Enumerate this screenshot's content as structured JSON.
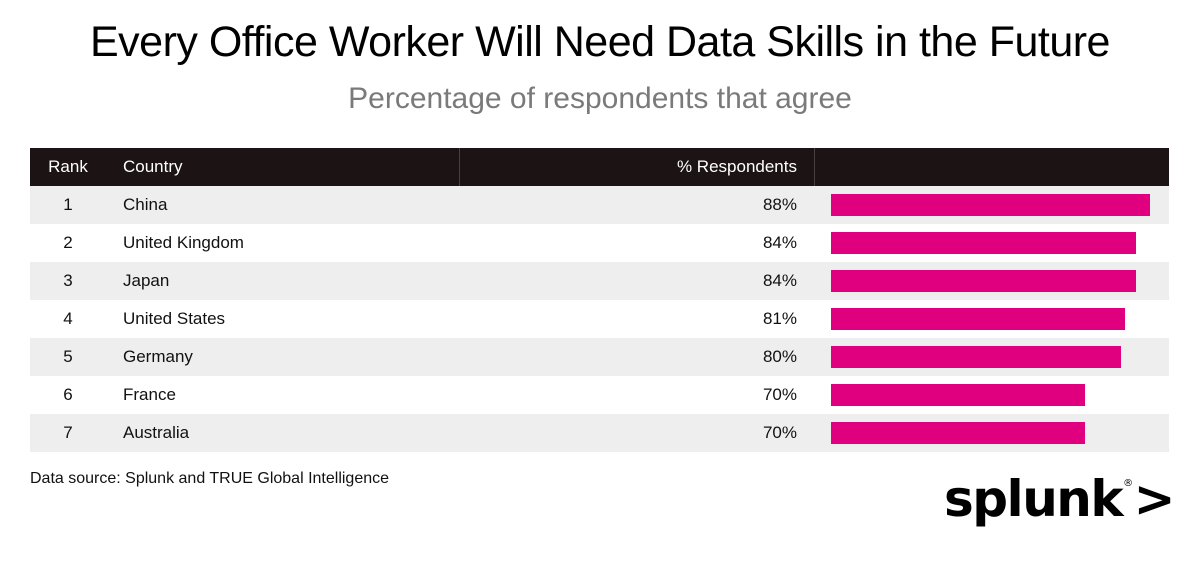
{
  "title": "Every Office Worker Will Need Data Skills in the Future",
  "subtitle": "Percentage of respondents that agree",
  "headers": {
    "rank": "Rank",
    "country": "Country",
    "pct": "% Respondents"
  },
  "rows": [
    {
      "rank": "1",
      "country": "China",
      "pct": "88%"
    },
    {
      "rank": "2",
      "country": "United Kingdom",
      "pct": "84%"
    },
    {
      "rank": "3",
      "country": "Japan",
      "pct": "84%"
    },
    {
      "rank": "4",
      "country": "United States",
      "pct": "81%"
    },
    {
      "rank": "5",
      "country": "Germany",
      "pct": "80%"
    },
    {
      "rank": "6",
      "country": "France",
      "pct": "70%"
    },
    {
      "rank": "7",
      "country": "Australia",
      "pct": "70%"
    }
  ],
  "source": "Data source: Splunk and TRUE Global Intelligence",
  "logo": {
    "text": "splunk",
    "chevron": ">",
    "reg": "®"
  },
  "colors": {
    "bar": "#e0007f",
    "header_bg": "#1c1414",
    "stripe": "#eeeeee",
    "subtitle": "#7a7a7a"
  },
  "chart_data": {
    "type": "bar",
    "orientation": "horizontal",
    "title": "Every Office Worker Will Need Data Skills in the Future",
    "subtitle": "Percentage of respondents that agree",
    "categories": [
      "China",
      "United Kingdom",
      "Japan",
      "United States",
      "Germany",
      "France",
      "Australia"
    ],
    "values": [
      88,
      84,
      84,
      81,
      80,
      70,
      70
    ],
    "unit": "%",
    "xlim": [
      0,
      88
    ]
  }
}
